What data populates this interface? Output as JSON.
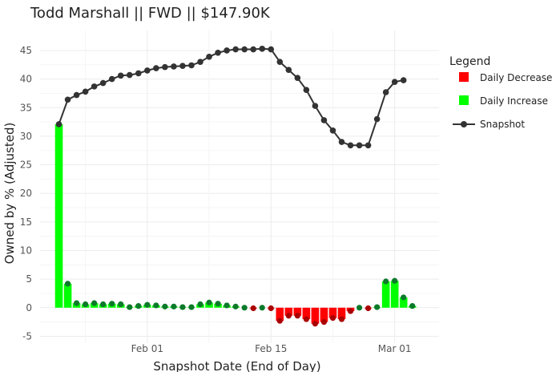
{
  "chart_data": {
    "type": "bar",
    "title": "Todd Marshall || FWD || $147.90K",
    "xlabel": "Snapshot Date (End of Day)",
    "ylabel": "Owned by % (Adjusted)",
    "ylim": [
      -6.2,
      48.5
    ],
    "yticks": [
      -5,
      0,
      5,
      10,
      15,
      20,
      25,
      30,
      35,
      40,
      45
    ],
    "xticks": [
      {
        "day": 11,
        "label": "Feb 01"
      },
      {
        "day": 25,
        "label": "Feb 15"
      },
      {
        "day": 39,
        "label": "Mar 01"
      }
    ],
    "xlim": [
      0,
      41.7
    ],
    "legend": {
      "title": "Legend",
      "position": "right",
      "entries": [
        {
          "label": "Daily Decrease",
          "color": "#ff0000"
        },
        {
          "label": "Daily Increase",
          "color": "#00ff00"
        },
        {
          "label": "Snapshot",
          "color": "#333333"
        }
      ]
    },
    "colors": {
      "increase_bar": "#00ff00",
      "increase_point": "#0b7a2a",
      "decrease_bar": "#ff0000",
      "decrease_point": "#aa0000",
      "snapshot_line": "#333333",
      "grid": "#ececec"
    },
    "series": [
      {
        "name": "Snapshot",
        "days": [
          1,
          2,
          3,
          4,
          5,
          6,
          7,
          8,
          9,
          10,
          11,
          12,
          13,
          14,
          15,
          16,
          17,
          18,
          19,
          20,
          21,
          22,
          23,
          24,
          25,
          26,
          27,
          28,
          29,
          30,
          31,
          32,
          33,
          34,
          35,
          36,
          37,
          38,
          39,
          40,
          41
        ],
        "values": [
          32.1,
          36.4,
          37.2,
          37.8,
          38.7,
          39.3,
          40.0,
          40.6,
          40.7,
          41.0,
          41.5,
          41.9,
          42.1,
          42.2,
          42.3,
          42.4,
          43.0,
          43.9,
          44.6,
          45.0,
          45.2,
          45.2,
          45.2,
          45.3,
          45.2,
          43.0,
          41.6,
          40.2,
          38.1,
          35.3,
          32.8,
          31.0,
          29.0,
          28.4,
          28.4,
          28.4,
          33.0,
          37.7,
          39.5,
          39.8,
          null
        ],
        "values_note": "snapshot ends at day 40"
      },
      {
        "name": "Daily Change",
        "days": [
          1,
          2,
          3,
          4,
          5,
          6,
          7,
          8,
          9,
          10,
          11,
          12,
          13,
          14,
          15,
          16,
          17,
          18,
          19,
          20,
          21,
          22,
          23,
          24,
          25,
          26,
          27,
          28,
          29,
          30,
          31,
          32,
          33,
          34,
          35,
          36,
          37,
          38,
          39,
          40,
          41
        ],
        "values": [
          32.1,
          4.2,
          0.8,
          0.6,
          0.8,
          0.6,
          0.7,
          0.6,
          0.1,
          0.3,
          0.5,
          0.4,
          0.2,
          0.2,
          0.1,
          0.1,
          0.6,
          0.9,
          0.7,
          0.4,
          0.2,
          0.0,
          -0.1,
          0.0,
          -0.1,
          -2.3,
          -1.4,
          -1.4,
          -2.0,
          -2.8,
          -2.5,
          -1.8,
          -2.0,
          -0.6,
          0.0,
          -0.1,
          0.1,
          4.6,
          4.7,
          1.8,
          0.3
        ]
      }
    ]
  }
}
